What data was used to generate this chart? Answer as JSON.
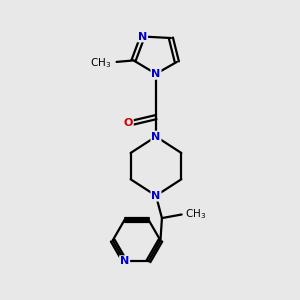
{
  "background_color": "#e8e8e8",
  "bond_color": "#000000",
  "N_color": "#0000cc",
  "O_color": "#cc0000",
  "bond_width": 1.6,
  "fig_width": 3.0,
  "fig_height": 3.0,
  "dpi": 100,
  "xlim": [
    0,
    10
  ],
  "ylim": [
    0,
    10
  ]
}
